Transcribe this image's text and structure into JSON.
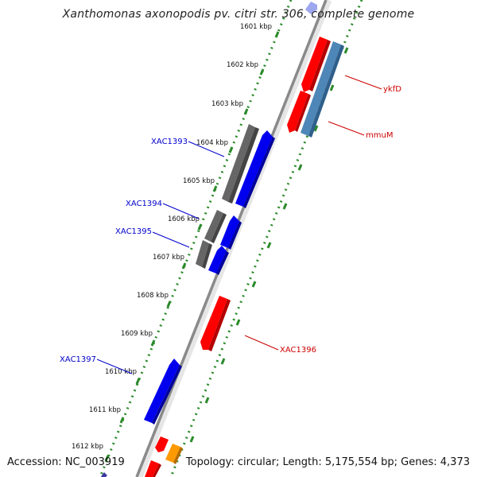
{
  "title": "Xanthomonas axonopodis pv. citri str. 306, complete genome",
  "footer": {
    "accession": "Accession: NC_003919",
    "summary": "Topology: circular; Length: 5,175,554 bp; Genes: 4,373"
  },
  "colors": {
    "backbone": "#8c8c8c",
    "tick": "#2a8a2a",
    "forward_gene": "#0000ee",
    "reverse_gene": "#ee0000",
    "hypothetical": "#666666",
    "rna": "#4f86b8",
    "other": "#ff9900",
    "label_forward": "#0000cc",
    "label_reverse": "#cc0000"
  },
  "ticks": [
    {
      "label": "1601 kbp"
    },
    {
      "label": "1602 kbp"
    },
    {
      "label": "1603 kbp"
    },
    {
      "label": "1604 kbp"
    },
    {
      "label": "1605 kbp"
    },
    {
      "label": "1606 kbp"
    },
    {
      "label": "1607 kbp"
    },
    {
      "label": "1608 kbp"
    },
    {
      "label": "1609 kbp"
    },
    {
      "label": "1610 kbp"
    },
    {
      "label": "1611 kbp"
    },
    {
      "label": "1612 kbp"
    }
  ],
  "gene_labels": [
    {
      "text": "ykfD",
      "strand": "reverse"
    },
    {
      "text": "mmuM",
      "strand": "reverse"
    },
    {
      "text": "XAC1393",
      "strand": "forward"
    },
    {
      "text": "XAC1394",
      "strand": "forward"
    },
    {
      "text": "XAC1395",
      "strand": "forward"
    },
    {
      "text": "XAC1396",
      "strand": "reverse"
    },
    {
      "text": "XAC1397",
      "strand": "forward"
    }
  ]
}
